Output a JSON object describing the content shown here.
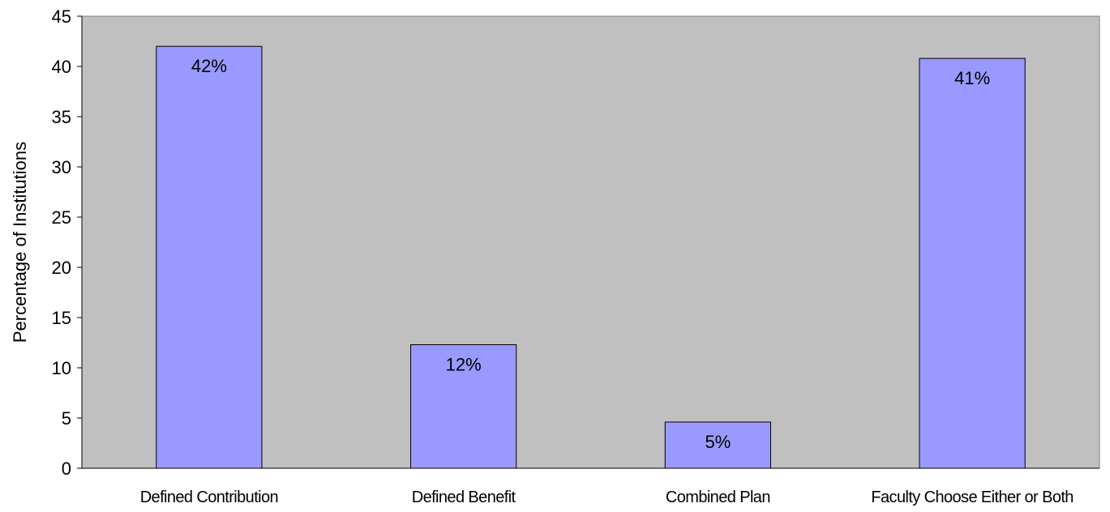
{
  "chart_data": {
    "type": "bar",
    "categories": [
      "Defined Contribution",
      "Defined Benefit",
      "Combined Plan",
      "Faculty Choose Either or Both"
    ],
    "values": [
      42,
      12.3,
      4.6,
      40.8
    ],
    "data_labels": [
      "42%",
      "12%",
      "5%",
      "41%"
    ],
    "title": "",
    "xlabel": "",
    "ylabel": "Percentage of Institutions",
    "ylim": [
      0,
      45
    ],
    "yticks": [
      0,
      5,
      10,
      15,
      20,
      25,
      30,
      35,
      40,
      45
    ],
    "grid": false,
    "legend": "none",
    "colors": {
      "bar_fill": "#9999ff",
      "bar_stroke": "#000000",
      "plot_background": "#c0c0c0",
      "plot_border": "#808080"
    }
  }
}
